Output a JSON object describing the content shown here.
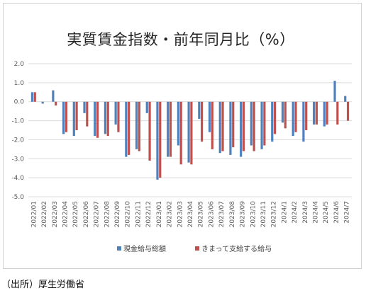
{
  "chart_data": {
    "type": "bar",
    "title": "実質賃金指数・前年同月比（%）",
    "xlabel": "",
    "ylabel": "",
    "ylim": [
      -5.0,
      2.0
    ],
    "yticks": [
      "2.0",
      "1.0",
      "0.0",
      "-1.0",
      "-2.0",
      "-3.0",
      "-4.0",
      "-5.0"
    ],
    "grid": true,
    "legend_position": "bottom",
    "categories": [
      "2022/01",
      "2022/02",
      "2022/03",
      "2022/04",
      "2022/05",
      "2022/06",
      "2022/07",
      "2022/08",
      "2022/09",
      "2022/10",
      "2022/11",
      "2022/12",
      "2023/01",
      "2023/02",
      "2023/03",
      "2023/04",
      "2023/05",
      "2023/06",
      "2023/07",
      "2023/08",
      "2023/09",
      "2023/10",
      "2023/11",
      "2023/12",
      "2024/1",
      "2024/2",
      "2024/3",
      "2024/4",
      "2024/5",
      "2024/6",
      "2024/7"
    ],
    "series": [
      {
        "name": "現金給与総額",
        "color": "#4f81bd",
        "values": [
          0.5,
          -0.1,
          0.6,
          -1.7,
          -1.8,
          -0.6,
          -1.8,
          -1.7,
          -1.2,
          -2.9,
          -2.5,
          -0.6,
          -4.1,
          -2.9,
          -2.3,
          -3.2,
          -0.9,
          -1.6,
          -2.7,
          -2.8,
          -2.9,
          -2.3,
          -2.5,
          -2.1,
          -1.1,
          -1.8,
          -2.1,
          -1.2,
          -1.3,
          1.1,
          0.3
        ]
      },
      {
        "name": "きまって支給する給与",
        "color": "#c0504d",
        "values": [
          0.5,
          0.0,
          -0.2,
          -1.6,
          -1.5,
          -1.3,
          -1.9,
          -1.8,
          -1.6,
          -2.8,
          -2.6,
          -3.1,
          -4.0,
          -2.9,
          -3.3,
          -3.3,
          -2.1,
          -2.5,
          -2.6,
          -2.4,
          -2.6,
          -2.6,
          -2.3,
          -1.7,
          -1.4,
          -1.6,
          -1.5,
          -1.2,
          -1.2,
          -1.2,
          -1.0
        ]
      }
    ]
  },
  "source_note": "（出所）厚生労働省"
}
